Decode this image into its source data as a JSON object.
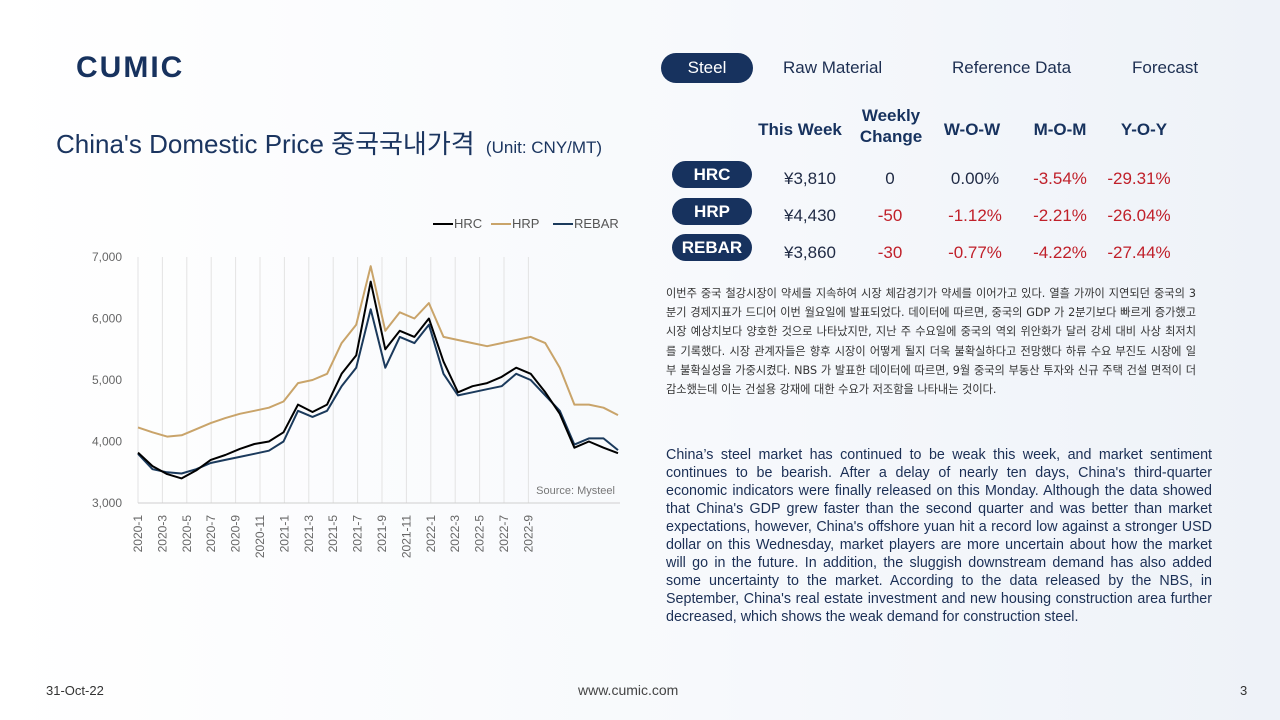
{
  "brand": {
    "logo_text": "CUMIC"
  },
  "nav": {
    "items": [
      "Steel",
      "Raw Material",
      "Reference Data",
      "Forecast"
    ],
    "active": "Steel"
  },
  "title": {
    "main": "China's Domestic Price 중국국내가격",
    "unit": "(Unit: CNY/MT)"
  },
  "price_table": {
    "headers": [
      "This Week",
      "Weekly Change",
      "W-O-W",
      "M-O-M",
      "Y-O-Y"
    ],
    "rows": [
      {
        "product": "HRC",
        "this_week": "¥3,810",
        "weekly_change": "0",
        "wow": "0.00%",
        "mom": "-3.54%",
        "yoy": "-29.31%"
      },
      {
        "product": "HRP",
        "this_week": "¥4,430",
        "weekly_change": "-50",
        "wow": "-1.12%",
        "mom": "-2.21%",
        "yoy": "-26.04%"
      },
      {
        "product": "REBAR",
        "this_week": "¥3,860",
        "weekly_change": "-30",
        "wow": "-0.77%",
        "mom": "-4.22%",
        "yoy": "-27.44%"
      }
    ]
  },
  "commentary": {
    "korean": "이번주 중국 철강시장이 약세를 지속하여 시장 체감경기가 약세를 이어가고 있다. 열흘 가까이 지연되던 중국의 3분기 경제지표가 드디어 이번 월요일에 발표되었다. 데이터에 따르면, 중국의 GDP 가 2분기보다 빠르게 증가했고 시장 예상치보다 양호한 것으로 나타났지만, 지난 주 수요일에 중국의 역외 위안화가 달러 강세 대비 사상 최저치를 기록했다. 시장 관계자들은 향후 시장이 어떻게 될지 더욱 불확실하다고 전망했다 하류 수요 부진도 시장에 일부 불확실성을 가중시켰다. NBS 가 발표한 데이터에 따르면, 9월 중국의 부동산 투자와 신규 주택 건설 면적이 더 감소했는데 이는 건설용 강재에 대한 수요가 저조함을 나타내는 것이다.",
    "english": "China’s steel market has continued to be weak this week, and market sentiment continues to be bearish. After a delay of nearly ten days, China's third-quarter economic indicators were finally released on this Monday. Although the data showed that China's GDP grew faster than the second quarter and was better than market expectations, however, China's offshore yuan hit a record low against a stronger USD dollar on this Wednesday, market players are more uncertain about how the market will go in the future. In addition, the sluggish downstream demand has also added some uncertainty to the market. According to the data released by the NBS, in September, China's real estate investment and new housing construction area further decreased, which shows the weak demand for construction steel."
  },
  "footer": {
    "date": "31-Oct-22",
    "url": "www.cumic.com",
    "page": "3"
  },
  "colors": {
    "brand": "#17325e",
    "negative": "#c0202a",
    "hrc": "#000000",
    "hrp": "#c9a46a",
    "rebar": "#1b3a5c"
  },
  "chart_data": {
    "type": "line",
    "title": "",
    "source": "Source: Mysteel",
    "ylim": [
      3000,
      7000
    ],
    "y_ticks": [
      "3,000",
      "4,000",
      "5,000",
      "6,000",
      "7,000"
    ],
    "x_ticks": [
      "2020-1",
      "2020-3",
      "2020-5",
      "2020-7",
      "2020-9",
      "2020-11",
      "2021-1",
      "2021-3",
      "2021-5",
      "2021-7",
      "2021-9",
      "2021-11",
      "2022-1",
      "2022-3",
      "2022-5",
      "2022-7",
      "2022-9"
    ],
    "legend_position": "top-right",
    "x": [
      "2020-01",
      "2020-02",
      "2020-03",
      "2020-04",
      "2020-05",
      "2020-06",
      "2020-07",
      "2020-08",
      "2020-09",
      "2020-10",
      "2020-11",
      "2020-12",
      "2021-01",
      "2021-02",
      "2021-03",
      "2021-04",
      "2021-05",
      "2021-06",
      "2021-07",
      "2021-08",
      "2021-09",
      "2021-10",
      "2021-11",
      "2021-12",
      "2022-01",
      "2022-02",
      "2022-03",
      "2022-04",
      "2022-05",
      "2022-06",
      "2022-07",
      "2022-08",
      "2022-09",
      "2022-10"
    ],
    "series": [
      {
        "name": "HRC",
        "values": [
          3820,
          3600,
          3470,
          3400,
          3530,
          3700,
          3780,
          3880,
          3960,
          4000,
          4150,
          4600,
          4480,
          4600,
          5100,
          5400,
          6600,
          5500,
          5800,
          5700,
          6000,
          5300,
          4800,
          4900,
          4950,
          5050,
          5200,
          5100,
          4800,
          4450,
          3900,
          4000,
          3900,
          3810
        ]
      },
      {
        "name": "HRP",
        "values": [
          4230,
          4150,
          4080,
          4100,
          4200,
          4300,
          4380,
          4450,
          4500,
          4550,
          4650,
          4950,
          5000,
          5100,
          5600,
          5900,
          6850,
          5800,
          6100,
          6000,
          6250,
          5700,
          5650,
          5600,
          5550,
          5600,
          5650,
          5700,
          5600,
          5200,
          4600,
          4600,
          4550,
          4430
        ]
      },
      {
        "name": "REBAR",
        "values": [
          3800,
          3550,
          3500,
          3480,
          3550,
          3650,
          3700,
          3750,
          3800,
          3850,
          4000,
          4500,
          4400,
          4500,
          4900,
          5200,
          6150,
          5200,
          5700,
          5600,
          5900,
          5100,
          4750,
          4800,
          4850,
          4900,
          5100,
          5000,
          4750,
          4500,
          3950,
          4050,
          4050,
          3860
        ]
      }
    ]
  }
}
